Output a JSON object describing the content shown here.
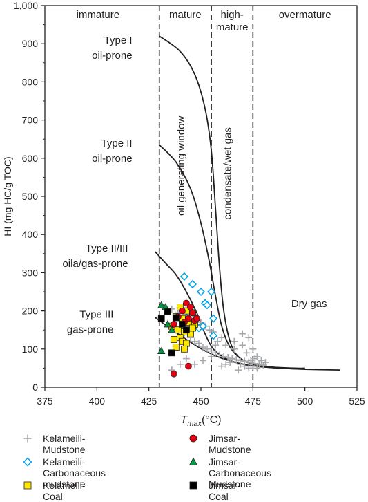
{
  "chart_data": {
    "type": "scatter",
    "xlabel": "T",
    "xlabel_sub": "max",
    "xlabel_unit": "(°C)",
    "ylabel": "HI (mg HC/g TOC)",
    "xlim": [
      375,
      525
    ],
    "ylim": [
      0,
      1000
    ],
    "xticks": [
      375,
      400,
      425,
      450,
      475,
      500,
      525
    ],
    "yticks": [
      0,
      100,
      200,
      300,
      400,
      500,
      600,
      700,
      800,
      900,
      1000
    ],
    "ytick_labels": [
      "0",
      "100",
      "200",
      "300",
      "400",
      "500",
      "600",
      "700",
      "800",
      "900",
      "1,000"
    ],
    "maturity_boundaries": [
      430,
      455,
      475
    ],
    "zones": [
      {
        "label": "immature",
        "x": 400.5
      },
      {
        "label": "mature",
        "x": 442.5
      },
      {
        "label": "high-\nmature",
        "x": 465
      },
      {
        "label": "overmature",
        "x": 500
      }
    ],
    "window_labels": [
      {
        "label": "oil generating window",
        "x": 442,
        "y": 580
      },
      {
        "label": "condensate/wet gas",
        "x": 464.5,
        "y": 560
      }
    ],
    "curve_labels": [
      {
        "label": "Type I\noil-prone",
        "x": 417,
        "y": 900
      },
      {
        "label": "Type II\noil-prone",
        "x": 417,
        "y": 630
      },
      {
        "label": "Type II/III\noila/gas-prone",
        "x": 415,
        "y": 355
      },
      {
        "label": "Type III\ngas-prone",
        "x": 408,
        "y": 182
      }
    ],
    "region_labels": [
      {
        "label": "Dry gas",
        "x": 502,
        "y": 210
      }
    ],
    "curves": [
      {
        "name": "Type I",
        "points": [
          [
            430,
            920
          ],
          [
            440,
            880
          ],
          [
            447,
            820
          ],
          [
            452,
            730
          ],
          [
            455,
            620
          ],
          [
            457,
            470
          ],
          [
            459,
            310
          ],
          [
            461,
            200
          ],
          [
            464,
            120
          ],
          [
            468,
            80
          ],
          [
            475,
            60
          ],
          [
            485,
            52
          ],
          [
            500,
            48
          ]
        ]
      },
      {
        "name": "Type II",
        "points": [
          [
            430,
            635
          ],
          [
            438,
            590
          ],
          [
            445,
            520
          ],
          [
            450,
            430
          ],
          [
            454,
            330
          ],
          [
            457,
            240
          ],
          [
            460,
            160
          ],
          [
            464,
            105
          ],
          [
            470,
            72
          ],
          [
            480,
            55
          ],
          [
            495,
            50
          ],
          [
            500,
            50
          ]
        ]
      },
      {
        "name": "Type II/III",
        "points": [
          [
            428,
            355
          ],
          [
            433,
            325
          ],
          [
            438,
            295
          ],
          [
            443,
            250
          ],
          [
            448,
            195
          ],
          [
            452,
            140
          ],
          [
            456,
            100
          ],
          [
            462,
            75
          ],
          [
            470,
            60
          ],
          [
            480,
            53
          ],
          [
            495,
            48
          ],
          [
            500,
            48
          ]
        ]
      },
      {
        "name": "Type III",
        "points": [
          [
            428,
            183
          ],
          [
            433,
            163
          ],
          [
            439,
            140
          ],
          [
            445,
            118
          ],
          [
            451,
            98
          ],
          [
            458,
            80
          ],
          [
            466,
            66
          ],
          [
            475,
            56
          ],
          [
            488,
            50
          ],
          [
            500,
            47
          ],
          [
            517,
            45
          ]
        ]
      }
    ],
    "series": [
      {
        "name": "Kelameili-Mudstone",
        "marker": "plus",
        "color": "#a7a9ac",
        "points": [
          [
            432,
            210
          ],
          [
            436,
            205
          ],
          [
            439,
            195
          ],
          [
            441,
            185
          ],
          [
            444,
            175
          ],
          [
            446,
            200
          ],
          [
            448,
            185
          ],
          [
            450,
            170
          ],
          [
            452,
            160
          ],
          [
            454,
            150
          ],
          [
            456,
            145
          ],
          [
            438,
            150
          ],
          [
            442,
            140
          ],
          [
            445,
            130
          ],
          [
            447,
            120
          ],
          [
            449,
            115
          ],
          [
            451,
            105
          ],
          [
            453,
            100
          ],
          [
            455,
            95
          ],
          [
            457,
            90
          ],
          [
            459,
            85
          ],
          [
            461,
            80
          ],
          [
            463,
            78
          ],
          [
            465,
            75
          ],
          [
            467,
            72
          ],
          [
            469,
            70
          ],
          [
            471,
            68
          ],
          [
            473,
            66
          ],
          [
            474,
            64
          ],
          [
            476,
            62
          ],
          [
            478,
            60
          ],
          [
            480,
            58
          ],
          [
            472,
            90
          ],
          [
            470,
            110
          ],
          [
            466,
            100
          ],
          [
            462,
            110
          ],
          [
            458,
            120
          ],
          [
            475,
            100
          ],
          [
            477,
            80
          ],
          [
            479,
            70
          ],
          [
            481,
            65
          ],
          [
            469,
            60
          ],
          [
            471,
            55
          ],
          [
            473,
            50
          ],
          [
            475,
            55
          ],
          [
            477,
            50
          ],
          [
            474,
            70
          ],
          [
            476,
            75
          ],
          [
            464,
            65
          ],
          [
            462,
            60
          ],
          [
            460,
            55
          ],
          [
            468,
            45
          ],
          [
            436,
            45
          ],
          [
            440,
            60
          ],
          [
            443,
            75
          ],
          [
            447,
            60
          ],
          [
            451,
            70
          ],
          [
            455,
            80
          ],
          [
            473,
            130
          ],
          [
            470,
            140
          ],
          [
            466,
            120
          ],
          [
            460,
            130
          ],
          [
            457,
            110
          ]
        ]
      },
      {
        "name": "Kelameili-Carbonaceous mudstone",
        "marker": "diamond",
        "color": "#00a0e9",
        "points": [
          [
            442,
            290
          ],
          [
            446,
            270
          ],
          [
            450,
            250
          ],
          [
            452,
            220
          ],
          [
            455,
            250
          ],
          [
            453,
            215
          ],
          [
            456,
            180
          ],
          [
            449,
            155
          ],
          [
            451,
            160
          ],
          [
            456,
            135
          ],
          [
            444,
            195
          ]
        ]
      },
      {
        "name": "Kelameili-Coal",
        "marker": "square",
        "color": "#ffe800",
        "points": [
          [
            440,
            210
          ],
          [
            443,
            200
          ],
          [
            446,
            195
          ],
          [
            438,
            185
          ],
          [
            441,
            180
          ],
          [
            444,
            170
          ],
          [
            447,
            165
          ],
          [
            436,
            160
          ],
          [
            439,
            150
          ],
          [
            442,
            145
          ],
          [
            445,
            140
          ],
          [
            440,
            130
          ],
          [
            437,
            125
          ],
          [
            441,
            120
          ],
          [
            443,
            115
          ],
          [
            438,
            105
          ],
          [
            442,
            100
          ],
          [
            446,
            155
          ]
        ]
      },
      {
        "name": "Jimsar-Mudstone",
        "marker": "circle",
        "color": "#e60012",
        "points": [
          [
            443,
            220
          ],
          [
            445,
            210
          ],
          [
            441,
            200
          ],
          [
            446,
            195
          ],
          [
            439,
            185
          ],
          [
            444,
            180
          ],
          [
            442,
            170
          ],
          [
            447,
            175
          ],
          [
            437,
            165
          ],
          [
            448,
            180
          ],
          [
            444,
            55
          ],
          [
            437,
            35
          ]
        ]
      },
      {
        "name": "Jimsar-Carbonaceous Mudstone",
        "marker": "triangle",
        "color": "#009944",
        "points": [
          [
            431,
            215
          ],
          [
            433,
            210
          ],
          [
            431,
            95
          ],
          [
            434,
            165
          ],
          [
            436,
            150
          ]
        ]
      },
      {
        "name": "Jimsar-Coal",
        "marker": "square",
        "color": "#000000",
        "points": [
          [
            431,
            180
          ],
          [
            434,
            198
          ],
          [
            438,
            182
          ],
          [
            441,
            165
          ],
          [
            443,
            150
          ],
          [
            436,
            90
          ]
        ]
      }
    ],
    "legend": [
      {
        "label": "Kelameili-Mudstone",
        "marker": "plus",
        "color": "#a7a9ac"
      },
      {
        "label": "Jimsar-Mudstone",
        "marker": "circle",
        "color": "#e60012"
      },
      {
        "label": "Kelameili-Carbonaceous\nmudstone",
        "marker": "diamond",
        "color": "#00a0e9"
      },
      {
        "label": "Jimsar-Carbonaceous\nMudstone",
        "marker": "triangle",
        "color": "#009944"
      },
      {
        "label": "Kelameili-Coal",
        "marker": "square",
        "color": "#ffe800"
      },
      {
        "label": "Jimsar-Coal",
        "marker": "square",
        "color": "#000000"
      }
    ],
    "legend_position": "bottom",
    "grid": false
  }
}
